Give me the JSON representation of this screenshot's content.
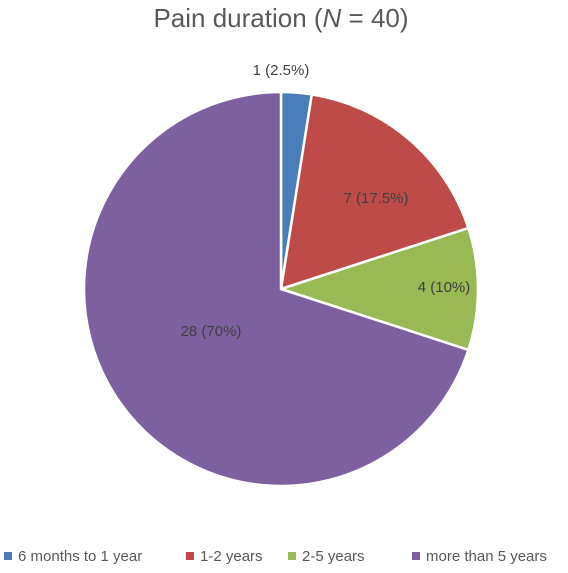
{
  "chart_data": {
    "type": "pie",
    "title": "Pain duration (",
    "title_italic": "N",
    "title_suffix": " = 40)",
    "start_angle_deg": 0,
    "direction": "clockwise",
    "legend_position": "bottom",
    "slices": [
      {
        "name": "6 months to 1 year",
        "value": 1,
        "label": "1 (2.5%)",
        "color": "#4a7ebb"
      },
      {
        "name": "1-2 years",
        "value": 7,
        "label": "7 (17.5%)",
        "color": "#be4b48"
      },
      {
        "name": "2-5 years",
        "value": 4,
        "label": "4 (10%)",
        "color": "#98b954"
      },
      {
        "name": "more than 5 years",
        "value": 28,
        "label": "28 (70%)",
        "color": "#7d60a0"
      }
    ]
  }
}
